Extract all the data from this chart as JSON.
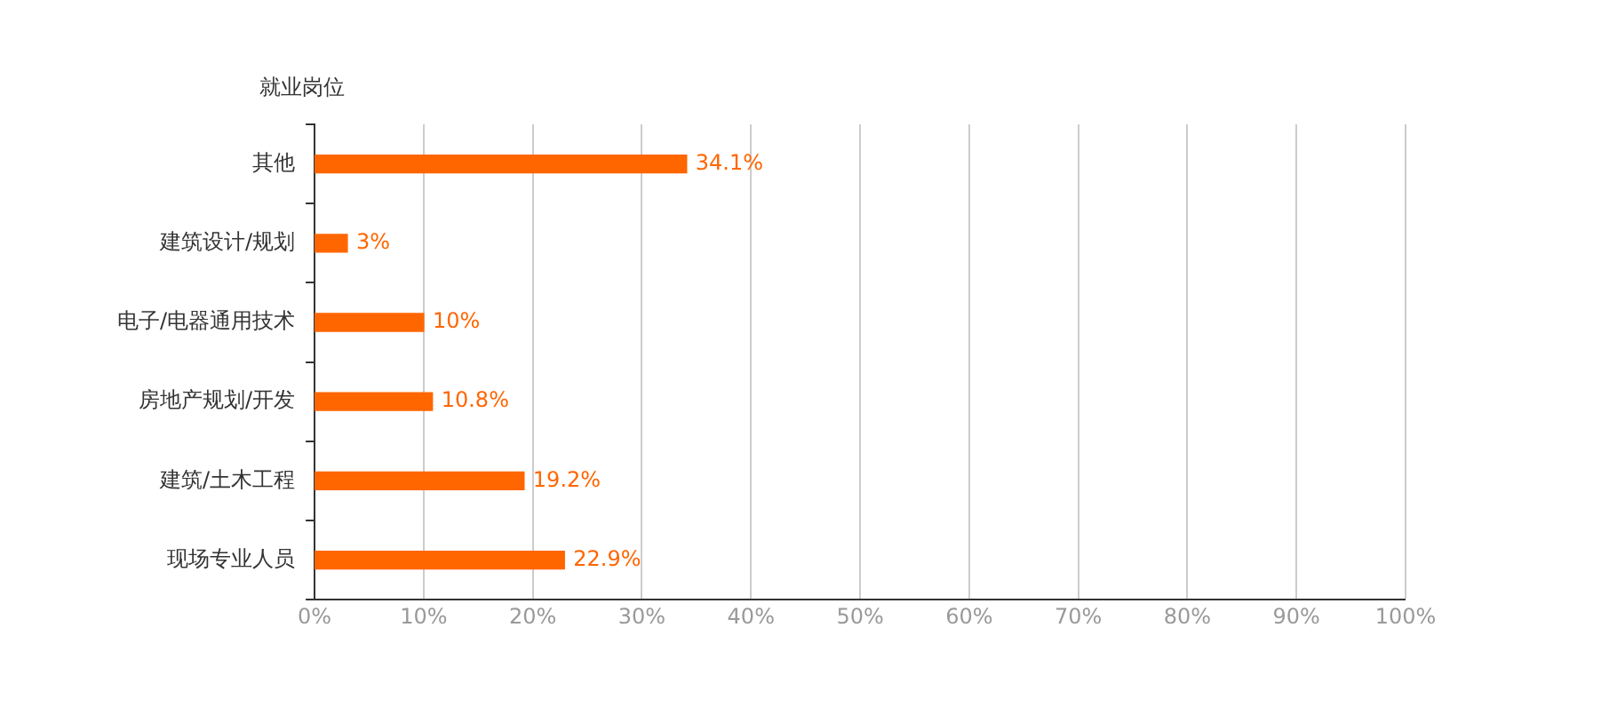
{
  "chart_data": {
    "type": "bar",
    "orientation": "horizontal",
    "ylabel": "就业岗位",
    "categories": [
      "其他",
      "建筑设计/规划",
      "电子/电器通用技术",
      "房地产规划/开发",
      "建筑/土木工程",
      "现场专业人员"
    ],
    "values": [
      34.1,
      3,
      10,
      10.8,
      19.2,
      22.9
    ],
    "color": "#ff6600",
    "value_labels": [
      "34.1%",
      "3%",
      "10%",
      "10.8%",
      "19.2%",
      "22.9%"
    ],
    "xlim": [
      0,
      100
    ],
    "xticks": [
      {
        "value": 0,
        "label": "0%"
      },
      {
        "value": 10,
        "label": "10%"
      },
      {
        "value": 20,
        "label": "20%"
      },
      {
        "value": 30,
        "label": "30%"
      },
      {
        "value": 40,
        "label": "40%"
      },
      {
        "value": 50,
        "label": "50%"
      },
      {
        "value": 60,
        "label": "60%"
      },
      {
        "value": 70,
        "label": "70%"
      },
      {
        "value": 80,
        "label": "80%"
      },
      {
        "value": 90,
        "label": "90%"
      },
      {
        "value": 100,
        "label": "100%"
      }
    ],
    "grid": "x",
    "legend": false
  }
}
